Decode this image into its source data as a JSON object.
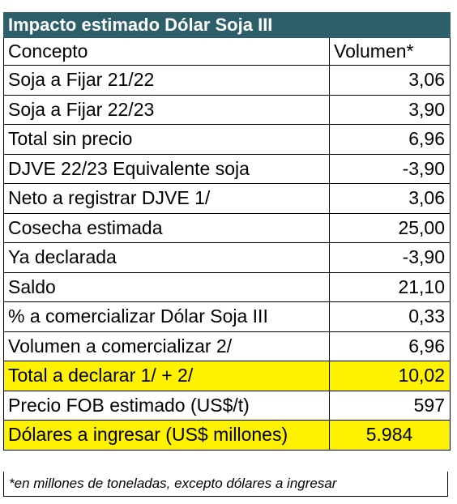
{
  "title": "Impacto estimado Dólar Soja III",
  "header": {
    "concept": "Concepto",
    "volume": "Volumen*"
  },
  "rows": [
    {
      "concept": "Soja a Fijar 21/22",
      "value": "3,06"
    },
    {
      "concept": "Soja a Fijar 22/23",
      "value": "3,90"
    },
    {
      "concept": "Total sin precio",
      "value": "6,96"
    },
    {
      "concept": "DJVE 22/23 Equivalente soja",
      "value": "-3,90"
    },
    {
      "concept": "Neto a registrar DJVE 1/",
      "value": "3,06"
    },
    {
      "concept": "Cosecha estimada",
      "value": "25,00"
    },
    {
      "concept": "Ya declarada",
      "value": "-3,90"
    },
    {
      "concept": "Saldo",
      "value": "21,10"
    },
    {
      "concept": "% a comercializar Dólar Soja III",
      "value": "0,33"
    },
    {
      "concept": "Volumen a comercializar 2/",
      "value": "6,96"
    },
    {
      "concept": "Total a declarar 1/ + 2/",
      "value": "10,02"
    },
    {
      "concept": "Precio FOB estimado (US$/t)",
      "value": "597"
    },
    {
      "concept": "Dólares a ingresar (US$ millones)",
      "value": "5.984"
    }
  ],
  "footnote": "*en millones de toneladas, excepto dólares a ingresar",
  "colors": {
    "title_bg": "#2d5f6b",
    "title_text": "#ffffff",
    "highlight": "#fff200"
  }
}
